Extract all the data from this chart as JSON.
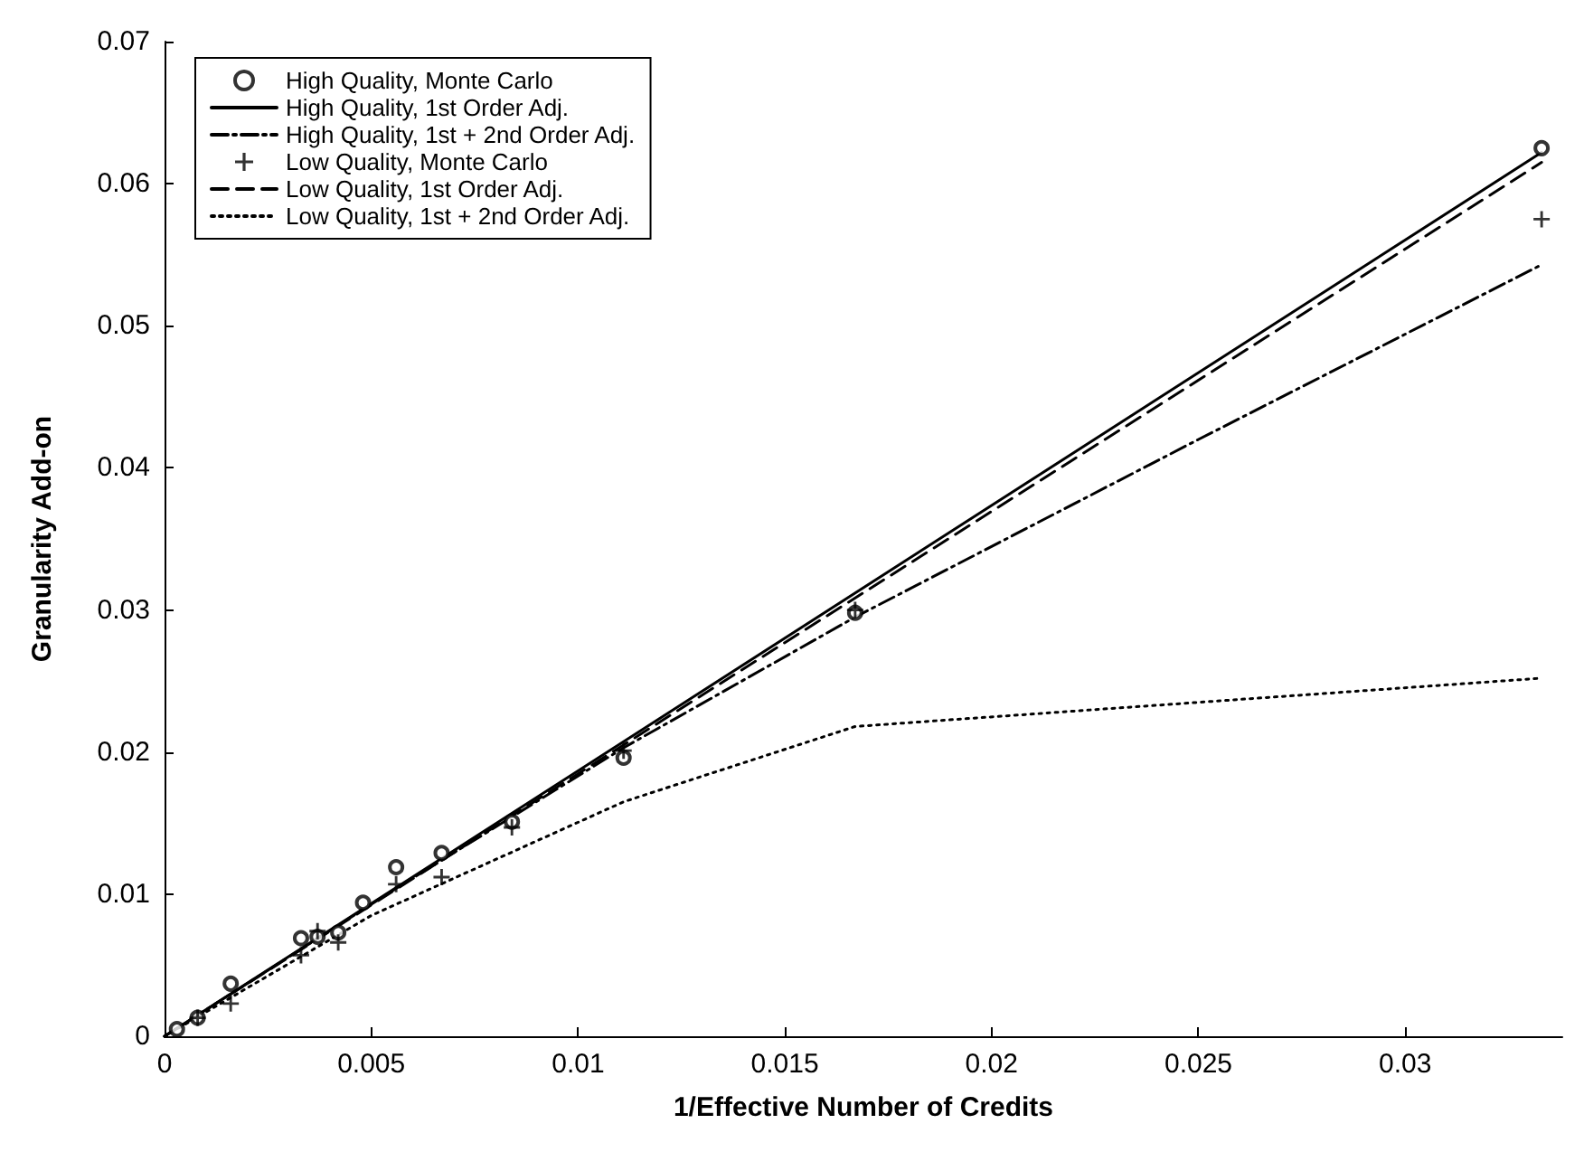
{
  "chart_data": {
    "type": "line",
    "xlabel": "1/Effective Number of Credits",
    "ylabel": "Granularity Add-on",
    "xlim": [
      0,
      0.0338
    ],
    "xticks": [
      0,
      0.005,
      0.01,
      0.015,
      0.02,
      0.025,
      0.03
    ],
    "ylim": [
      0,
      0.07
    ],
    "yticks": [
      0,
      0.01,
      0.02,
      0.03,
      0.04,
      0.05,
      0.06,
      0.07
    ],
    "grid": false,
    "legend": "top left",
    "series": [
      {
        "name": "High Quality, Monte Carlo",
        "type": "scatter",
        "marker": "circle",
        "color": "#000000",
        "x": [
          0.0003,
          0.0008,
          0.0016,
          0.0033,
          0.0037,
          0.0042,
          0.0048,
          0.0056,
          0.0067,
          0.0084,
          0.0111,
          0.0167,
          0.0333
        ],
        "values": [
          0.0005,
          0.0013,
          0.0037,
          0.0069,
          0.007,
          0.0073,
          0.0094,
          0.0119,
          0.0129,
          0.0151,
          0.0196,
          0.0298,
          0.0625
        ]
      },
      {
        "name": "High Quality, 1st Order Adj.",
        "line_style": "solid",
        "marker": "none",
        "color": "#000000",
        "x": [
          0,
          0.0333
        ],
        "values": [
          0,
          0.0622
        ]
      },
      {
        "name": "High Quality, 1st + 2nd Order Adj.",
        "line_style": "dashdot",
        "marker": "none",
        "color": "#000000",
        "x": [
          0,
          0.0056,
          0.0111,
          0.0167,
          0.025,
          0.0333
        ],
        "values": [
          0,
          0.0104,
          0.0203,
          0.0295,
          0.042,
          0.0543
        ]
      },
      {
        "name": "Low Quality, Monte Carlo",
        "type": "scatter",
        "marker": "cross",
        "color": "#000000",
        "x": [
          0.0008,
          0.0016,
          0.0033,
          0.0037,
          0.0042,
          0.0056,
          0.0067,
          0.0084,
          0.0111,
          0.0167,
          0.0333
        ],
        "values": [
          0.0013,
          0.0023,
          0.0057,
          0.0074,
          0.0066,
          0.0107,
          0.0112,
          0.0147,
          0.0201,
          0.03,
          0.0575
        ]
      },
      {
        "name": "Low Quality, 1st Order Adj.",
        "line_style": "dashed",
        "marker": "none",
        "color": "#000000",
        "x": [
          0,
          0.0333
        ],
        "values": [
          0,
          0.0615
        ]
      },
      {
        "name": "Low Quality, 1st + 2nd Order Adj.",
        "line_style": "dotted",
        "marker": "none",
        "color": "#000000",
        "x": [
          0,
          0.005,
          0.0111,
          0.0167,
          0.0333
        ],
        "values": [
          0,
          0.0085,
          0.0165,
          0.0218,
          0.0252
        ]
      }
    ]
  }
}
